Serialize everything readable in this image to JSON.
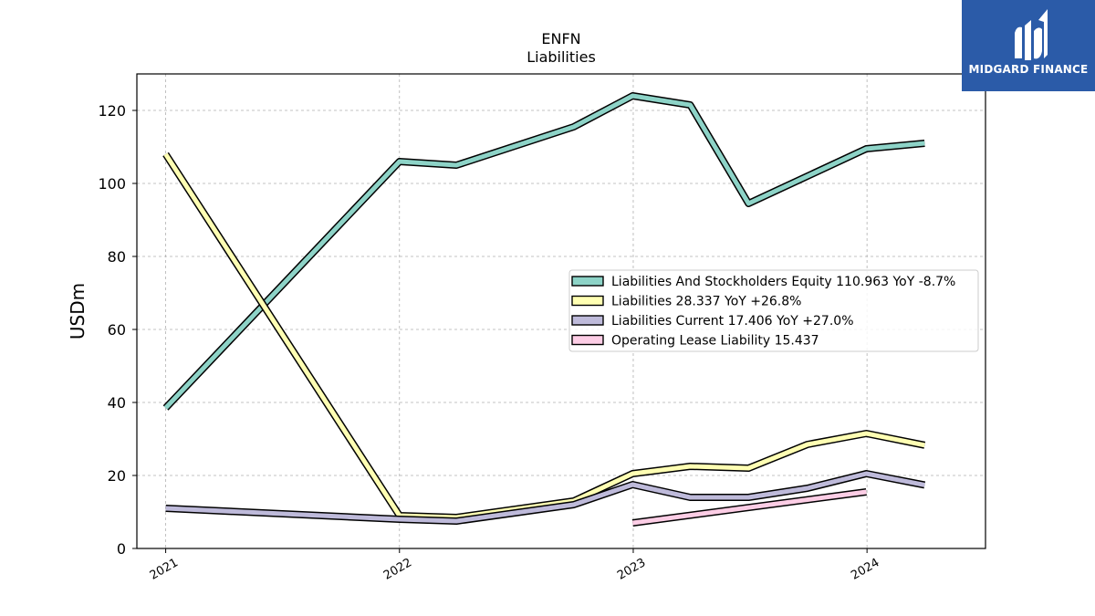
{
  "logo": {
    "name": "MIDGARD FINANCE",
    "colors": {
      "background": "#2b5ba8",
      "foreground": "#ffffff"
    }
  },
  "chart_data": {
    "type": "line",
    "title": "ENFN",
    "subtitle": "Liabilities",
    "ylabel": "USDm",
    "xlabel": "",
    "ylim": [
      0,
      130
    ],
    "xlim": [
      "2020-11-17",
      "2024-07-04"
    ],
    "yticks": [
      0,
      20,
      40,
      60,
      80,
      100,
      120
    ],
    "xticks": [
      {
        "label": "2021",
        "date": "2021-01-01"
      },
      {
        "label": "2022",
        "date": "2022-01-01"
      },
      {
        "label": "2023",
        "date": "2023-01-01"
      },
      {
        "label": "2024",
        "date": "2024-01-01"
      }
    ],
    "grid": true,
    "legend_position": "center-right",
    "series": [
      {
        "name": "Liabilities And Stockholders Equity",
        "legend_label": "Liabilities And Stockholders Equity  110.963 YoY -8.7%",
        "color": "#8dd3c7",
        "points": [
          [
            "2021-01-01",
            38.5
          ],
          [
            "2022-01-01",
            106
          ],
          [
            "2022-03-31",
            105
          ],
          [
            "2022-09-30",
            115.5
          ],
          [
            "2022-12-31",
            124
          ],
          [
            "2023-03-31",
            121.5
          ],
          [
            "2023-06-30",
            94.5
          ],
          [
            "2023-09-30",
            102
          ],
          [
            "2023-12-31",
            109.5
          ],
          [
            "2024-03-31",
            111
          ]
        ]
      },
      {
        "name": "Liabilities",
        "legend_label": "Liabilities  28.337 YoY +26.8%",
        "color": "#ffffb3",
        "points": [
          [
            "2021-01-01",
            108
          ],
          [
            "2022-01-01",
            9
          ],
          [
            "2022-03-31",
            8.5
          ],
          [
            "2022-09-30",
            13
          ],
          [
            "2022-12-31",
            20.5
          ],
          [
            "2023-03-31",
            22.5
          ],
          [
            "2023-06-30",
            22
          ],
          [
            "2023-09-30",
            28.5
          ],
          [
            "2023-12-31",
            31.5
          ],
          [
            "2024-03-31",
            28.3
          ]
        ]
      },
      {
        "name": "Liabilities Current",
        "legend_label": "Liabilities Current  17.406 YoY +27.0%",
        "color": "#bebada",
        "points": [
          [
            "2021-01-01",
            11
          ],
          [
            "2022-01-01",
            8
          ],
          [
            "2022-03-31",
            7.5
          ],
          [
            "2022-09-30",
            12
          ],
          [
            "2022-12-31",
            17.5
          ],
          [
            "2023-03-31",
            14
          ],
          [
            "2023-06-30",
            14
          ],
          [
            "2023-09-30",
            16.5
          ],
          [
            "2023-12-31",
            20.5
          ],
          [
            "2024-03-31",
            17.4
          ]
        ]
      },
      {
        "name": "Operating Lease Liability",
        "legend_label": "Operating Lease Liability  15.437",
        "color": "#fccde5",
        "points": [
          [
            "2022-12-31",
            7
          ],
          [
            "2023-12-31",
            15.5
          ]
        ]
      }
    ]
  }
}
